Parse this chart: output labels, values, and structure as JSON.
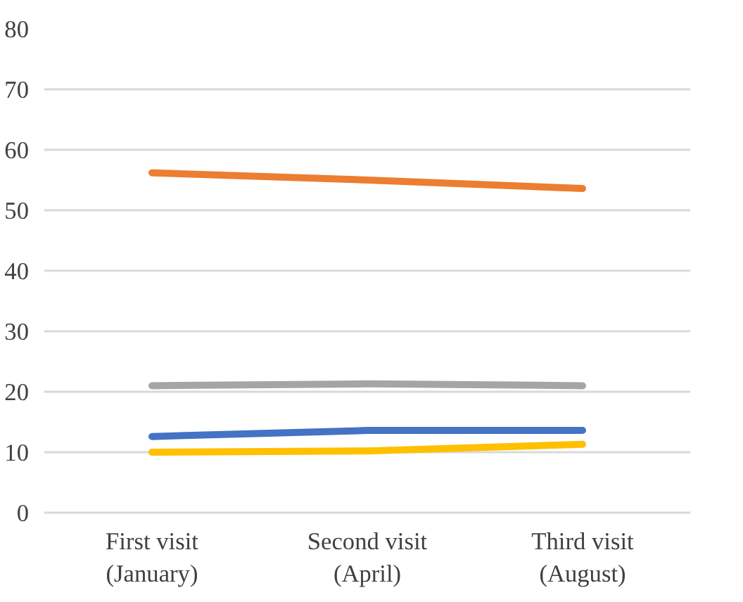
{
  "chart_data": {
    "type": "line",
    "categories": [
      "First visit (January)",
      "Second visit (April)",
      "Third visit (August)"
    ],
    "series": [
      {
        "color": "#ed7d31",
        "values": [
          56.2,
          55.0,
          53.6
        ]
      },
      {
        "color": "#a5a5a5",
        "values": [
          21.0,
          21.3,
          21.0
        ]
      },
      {
        "color": "#4472c4",
        "values": [
          12.6,
          13.6,
          13.6
        ]
      },
      {
        "color": "#ffc000",
        "values": [
          10.0,
          10.2,
          11.3
        ]
      }
    ],
    "ylim": [
      0,
      80
    ],
    "yticks": [
      0,
      10,
      20,
      30,
      40,
      50,
      60,
      70,
      80
    ],
    "grid": "y",
    "marker": "none",
    "line_style": "solid"
  }
}
